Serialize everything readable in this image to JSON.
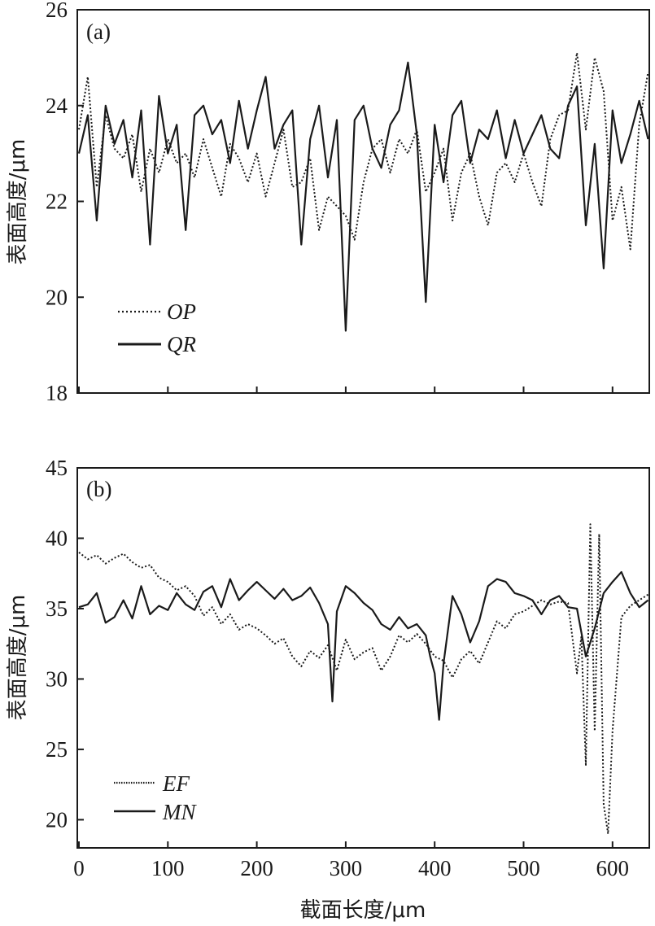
{
  "chart_data": [
    {
      "type": "line",
      "panel_label": "(a)",
      "xlabel": "",
      "ylabel": "表面高度/μm",
      "xlim": [
        0,
        640
      ],
      "ylim": [
        18,
        26
      ],
      "xticks": [
        0,
        100,
        200,
        300,
        400,
        500,
        600
      ],
      "x_tick_labels": [
        "",
        "",
        "",
        "",
        "",
        "",
        ""
      ],
      "yticks": [
        18,
        20,
        22,
        24,
        26
      ],
      "y_tick_labels": [
        "18",
        "20",
        "22",
        "24",
        "26"
      ],
      "legend_position": "lower-left",
      "grid": false,
      "series": [
        {
          "name": "OP",
          "style": "dotted",
          "color": "#1a1a1a",
          "x": [
            0,
            10,
            20,
            30,
            40,
            50,
            60,
            70,
            80,
            90,
            100,
            110,
            120,
            130,
            140,
            150,
            160,
            170,
            180,
            190,
            200,
            210,
            220,
            230,
            240,
            250,
            260,
            270,
            280,
            290,
            300,
            310,
            320,
            330,
            340,
            350,
            360,
            370,
            380,
            390,
            400,
            410,
            420,
            430,
            440,
            450,
            460,
            470,
            480,
            490,
            500,
            510,
            520,
            530,
            540,
            550,
            560,
            570,
            580,
            590,
            600,
            610,
            620,
            630,
            640
          ],
          "values": [
            23.5,
            24.6,
            22.3,
            23.8,
            23.1,
            22.9,
            23.4,
            22.2,
            23.1,
            22.6,
            23.3,
            22.8,
            23.0,
            22.5,
            23.3,
            22.7,
            22.1,
            23.2,
            22.9,
            22.4,
            23.0,
            22.1,
            22.8,
            23.5,
            22.3,
            22.4,
            22.9,
            21.4,
            22.1,
            21.9,
            21.7,
            21.2,
            22.4,
            23.1,
            23.3,
            22.6,
            23.3,
            23.0,
            23.5,
            22.2,
            22.6,
            23.1,
            21.6,
            22.6,
            23.0,
            22.1,
            21.5,
            22.6,
            22.8,
            22.4,
            23.0,
            22.4,
            21.9,
            23.3,
            23.8,
            23.9,
            25.1,
            23.5,
            25.0,
            24.3,
            21.6,
            22.3,
            21.0,
            23.6,
            24.7
          ]
        },
        {
          "name": "QR",
          "style": "solid",
          "color": "#1a1a1a",
          "x": [
            0,
            10,
            20,
            30,
            40,
            50,
            60,
            70,
            80,
            90,
            100,
            110,
            120,
            130,
            140,
            150,
            160,
            170,
            180,
            190,
            200,
            210,
            220,
            230,
            240,
            250,
            260,
            270,
            280,
            290,
            300,
            310,
            320,
            330,
            340,
            350,
            360,
            370,
            380,
            390,
            400,
            410,
            420,
            430,
            440,
            450,
            460,
            470,
            480,
            490,
            500,
            510,
            520,
            530,
            540,
            550,
            560,
            570,
            580,
            590,
            600,
            610,
            620,
            630,
            640
          ],
          "values": [
            23.0,
            23.8,
            21.6,
            24.0,
            23.2,
            23.7,
            22.5,
            23.9,
            21.1,
            24.2,
            23.0,
            23.6,
            21.4,
            23.8,
            24.0,
            23.4,
            23.7,
            22.8,
            24.1,
            23.1,
            23.9,
            24.6,
            23.1,
            23.6,
            23.9,
            21.1,
            23.3,
            24.0,
            22.5,
            23.7,
            19.3,
            23.7,
            24.0,
            23.1,
            22.7,
            23.6,
            23.9,
            24.9,
            23.4,
            19.9,
            23.6,
            22.4,
            23.8,
            24.1,
            22.8,
            23.5,
            23.3,
            23.9,
            22.9,
            23.7,
            23.0,
            23.4,
            23.8,
            23.1,
            22.9,
            24.0,
            24.4,
            21.5,
            23.2,
            20.6,
            23.9,
            22.8,
            23.4,
            24.1,
            23.3
          ]
        }
      ]
    },
    {
      "type": "line",
      "panel_label": "(b)",
      "xlabel": "截面长度/μm",
      "ylabel": "表面高度/μm",
      "xlim": [
        0,
        640
      ],
      "ylim": [
        18,
        45
      ],
      "xticks": [
        0,
        100,
        200,
        300,
        400,
        500,
        600
      ],
      "x_tick_labels": [
        "0",
        "100",
        "200",
        "300",
        "400",
        "500",
        "600"
      ],
      "yticks": [
        20,
        25,
        30,
        35,
        40,
        45
      ],
      "y_tick_labels": [
        "20",
        "25",
        "30",
        "35",
        "40",
        "45"
      ],
      "legend_position": "lower-left",
      "grid": false,
      "series": [
        {
          "name": "EF",
          "style": "dotted",
          "color": "#1a1a1a",
          "x": [
            0,
            10,
            20,
            30,
            40,
            50,
            60,
            70,
            80,
            90,
            100,
            110,
            120,
            130,
            140,
            150,
            160,
            170,
            180,
            190,
            200,
            210,
            220,
            230,
            240,
            250,
            260,
            270,
            280,
            290,
            300,
            310,
            320,
            330,
            340,
            350,
            360,
            370,
            380,
            390,
            400,
            410,
            420,
            430,
            440,
            450,
            460,
            470,
            480,
            490,
            500,
            510,
            520,
            530,
            540,
            550,
            560,
            565,
            570,
            575,
            580,
            585,
            590,
            595,
            600,
            610,
            620,
            630,
            640
          ],
          "values": [
            39.0,
            38.5,
            38.8,
            38.2,
            38.6,
            38.9,
            38.3,
            37.9,
            38.1,
            37.2,
            36.9,
            36.3,
            36.6,
            35.9,
            34.5,
            35.1,
            33.9,
            34.6,
            33.5,
            33.9,
            33.6,
            33.1,
            32.5,
            32.9,
            31.6,
            30.9,
            32.0,
            31.5,
            32.4,
            30.6,
            32.8,
            31.4,
            31.9,
            32.2,
            30.6,
            31.6,
            33.1,
            32.6,
            33.2,
            32.5,
            31.6,
            31.3,
            30.1,
            31.4,
            32.0,
            31.1,
            32.6,
            34.1,
            33.6,
            34.6,
            34.8,
            35.2,
            35.6,
            35.3,
            35.5,
            35.4,
            30.4,
            33.0,
            23.9,
            41.0,
            26.3,
            40.3,
            21.1,
            19.0,
            26.3,
            34.4,
            35.2,
            35.6,
            36.0
          ]
        },
        {
          "name": "MN",
          "style": "solid",
          "color": "#1a1a1a",
          "x": [
            0,
            10,
            20,
            30,
            40,
            50,
            60,
            70,
            80,
            90,
            100,
            110,
            120,
            130,
            140,
            150,
            160,
            170,
            180,
            190,
            200,
            210,
            220,
            230,
            240,
            250,
            260,
            270,
            280,
            285,
            290,
            300,
            310,
            320,
            330,
            340,
            350,
            360,
            370,
            380,
            390,
            395,
            400,
            405,
            410,
            420,
            430,
            440,
            450,
            460,
            470,
            480,
            490,
            500,
            510,
            520,
            530,
            540,
            550,
            560,
            570,
            580,
            590,
            600,
            610,
            620,
            630,
            640
          ],
          "values": [
            35.1,
            35.3,
            36.1,
            34.0,
            34.4,
            35.6,
            34.3,
            36.6,
            34.6,
            35.2,
            34.9,
            36.1,
            35.3,
            34.9,
            36.2,
            36.6,
            35.1,
            37.1,
            35.6,
            36.3,
            36.9,
            36.3,
            35.7,
            36.4,
            35.6,
            35.9,
            36.5,
            35.4,
            33.9,
            28.4,
            34.8,
            36.6,
            36.1,
            35.4,
            34.9,
            33.9,
            33.5,
            34.4,
            33.6,
            33.9,
            33.1,
            31.6,
            30.4,
            27.1,
            31.1,
            35.9,
            34.6,
            32.6,
            34.1,
            36.6,
            37.1,
            36.9,
            36.1,
            35.9,
            35.6,
            34.6,
            35.6,
            35.9,
            35.1,
            35.0,
            31.6,
            33.6,
            36.1,
            36.9,
            37.6,
            36.1,
            35.1,
            35.6
          ]
        }
      ]
    }
  ]
}
